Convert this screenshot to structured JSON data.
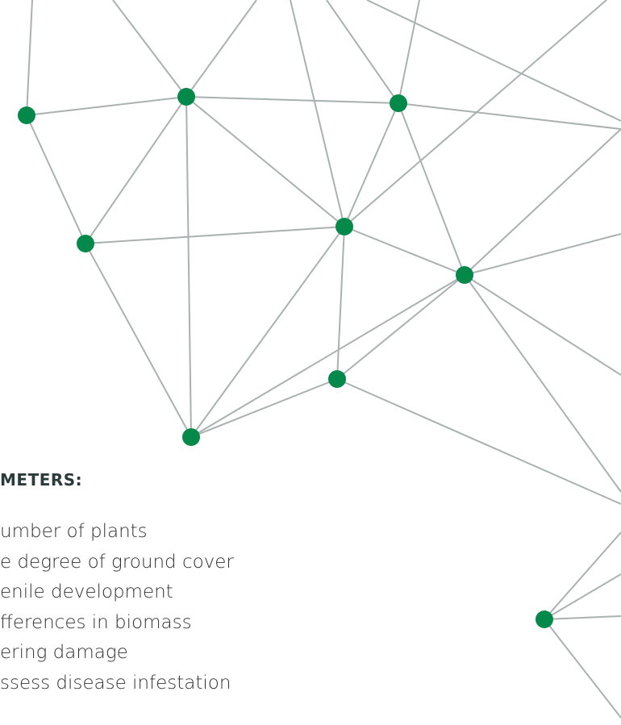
{
  "section": {
    "heading": "METERS:",
    "items": [
      "umber of plants",
      "e degree of ground cover",
      "enile development",
      "fferences in biomass",
      "ering damage",
      "ssess disease infestation"
    ]
  }
}
